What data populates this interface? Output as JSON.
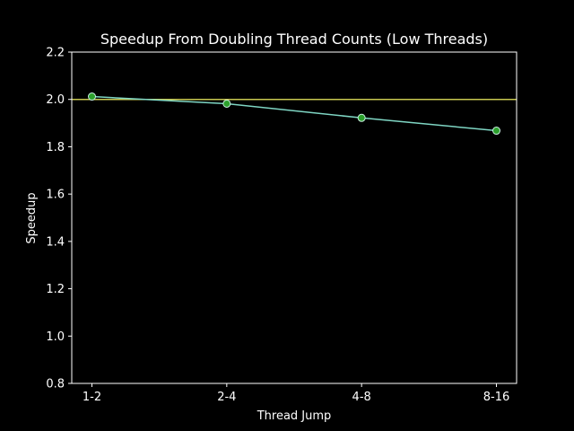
{
  "chart_data": {
    "type": "line",
    "title": "Speedup From Doubling Thread Counts (Low Threads)",
    "xlabel": "Thread Jump",
    "ylabel": "Speedup",
    "categories": [
      "1-2",
      "2-4",
      "4-8",
      "8-16"
    ],
    "series": [
      {
        "values": [
          2.012,
          1.982,
          1.922,
          1.868
        ],
        "line_color": "#7fd6c4",
        "marker_face": "#2ca02c",
        "marker_edge": "#c8f0e0"
      }
    ],
    "reference_line": {
      "y": 2.0,
      "color": "#c8c850"
    },
    "ylim": [
      0.8,
      2.2
    ],
    "yticks": [
      "0.8",
      "1.0",
      "1.2",
      "1.4",
      "1.6",
      "1.8",
      "2.0",
      "2.2"
    ],
    "grid": false,
    "background": "#000000",
    "axes_color": "#ffffff"
  }
}
